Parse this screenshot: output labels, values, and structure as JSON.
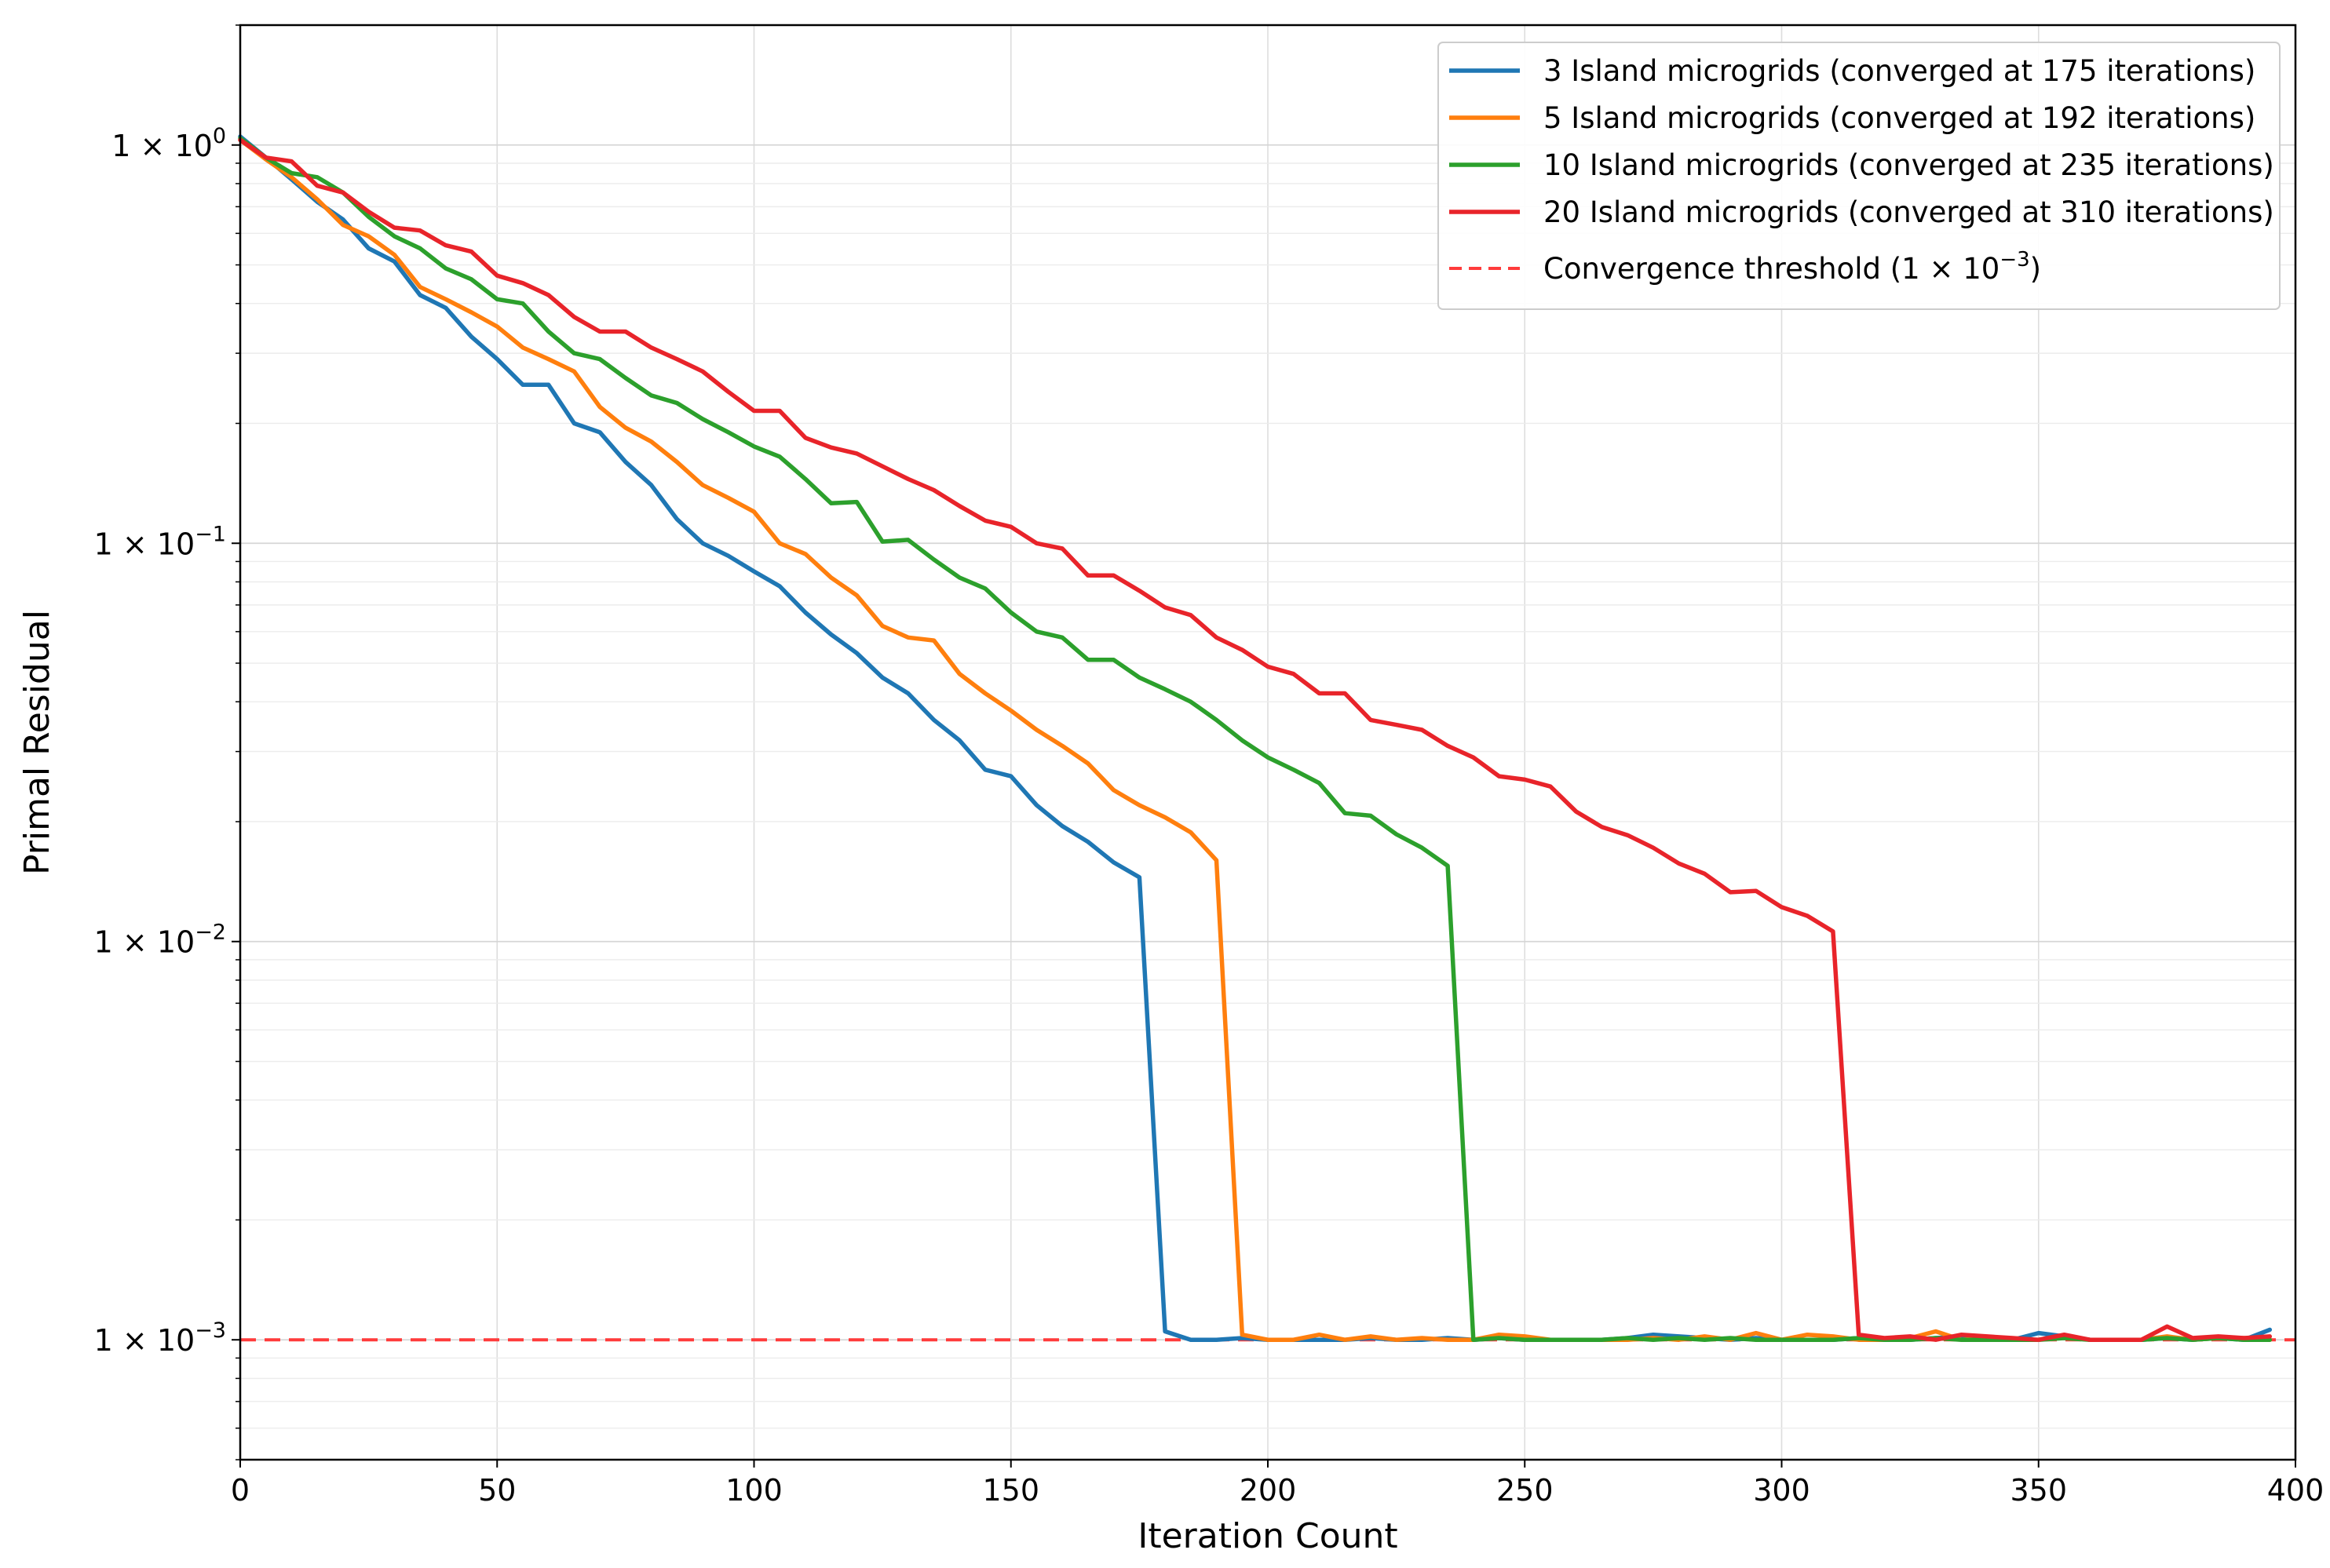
{
  "chart_data": {
    "type": "line",
    "xlabel": "Iteration Count",
    "ylabel": "Primal Residual",
    "xlim": [
      0,
      400
    ],
    "ylim": [
      0.0005,
      2.0
    ],
    "yscale": "log",
    "grid": true,
    "legend_position": "top-right",
    "x_ticks": [
      0,
      50,
      100,
      150,
      200,
      250,
      300,
      350,
      400
    ],
    "x_tick_labels": [
      "0",
      "50",
      "100",
      "150",
      "200",
      "250",
      "300",
      "350",
      "400"
    ],
    "y_ticks": [
      1,
      0.1,
      0.01,
      0.001
    ],
    "y_tick_labels": [
      {
        "base": "1 × 10",
        "exp": "0"
      },
      {
        "base": "1 × 10",
        "exp": "−1"
      },
      {
        "base": "1 × 10",
        "exp": "−2"
      },
      {
        "base": "1 × 10",
        "exp": "−3"
      }
    ],
    "x": [
      0,
      5,
      10,
      15,
      20,
      25,
      30,
      35,
      40,
      45,
      50,
      55,
      60,
      65,
      70,
      75,
      80,
      85,
      90,
      95,
      100,
      105,
      110,
      115,
      120,
      125,
      130,
      135,
      140,
      145,
      150,
      155,
      160,
      165,
      170,
      175,
      180,
      185,
      190,
      195,
      200,
      205,
      210,
      215,
      220,
      225,
      230,
      235,
      240,
      245,
      250,
      255,
      260,
      265,
      270,
      275,
      280,
      285,
      290,
      295,
      300,
      305,
      310,
      315,
      320,
      325,
      330,
      335,
      340,
      345,
      350,
      355,
      360,
      365,
      370,
      375,
      380,
      385,
      390,
      395
    ],
    "series": [
      {
        "name": "3 Island microgrids (converged at 175 iterations)",
        "color": "#1f77b4",
        "values": [
          1.05,
          0.93,
          0.82,
          0.72,
          0.65,
          0.55,
          0.51,
          0.42,
          0.39,
          0.33,
          0.29,
          0.25,
          0.25,
          0.2,
          0.19,
          0.16,
          0.14,
          0.115,
          0.1,
          0.093,
          0.085,
          0.078,
          0.067,
          0.059,
          0.053,
          0.046,
          0.042,
          0.036,
          0.032,
          0.027,
          0.026,
          0.022,
          0.0195,
          0.0178,
          0.0158,
          0.0145,
          0.00105,
          0.001,
          0.001,
          0.00101,
          0.001,
          0.001,
          0.001,
          0.001,
          0.00101,
          0.001,
          0.001,
          0.00101,
          0.001,
          0.00101,
          0.001,
          0.001,
          0.001,
          0.001,
          0.00101,
          0.00103,
          0.00102,
          0.00101,
          0.001,
          0.00101,
          0.001,
          0.001,
          0.001,
          0.00101,
          0.001,
          0.001,
          0.00101,
          0.00102,
          0.00101,
          0.001,
          0.00104,
          0.00102,
          0.001,
          0.001,
          0.001,
          0.00101,
          0.001,
          0.00101,
          0.001,
          0.00106
        ]
      },
      {
        "name": "5 Island microgrids (converged at 192 iterations)",
        "color": "#ff7f0e",
        "values": [
          1.03,
          0.92,
          0.83,
          0.73,
          0.63,
          0.59,
          0.53,
          0.44,
          0.41,
          0.38,
          0.35,
          0.31,
          0.29,
          0.27,
          0.22,
          0.195,
          0.18,
          0.16,
          0.14,
          0.13,
          0.12,
          0.1,
          0.094,
          0.082,
          0.074,
          0.062,
          0.058,
          0.057,
          0.047,
          0.042,
          0.038,
          0.034,
          0.031,
          0.028,
          0.024,
          0.022,
          0.0205,
          0.0188,
          0.016,
          0.00103,
          0.001,
          0.001,
          0.00103,
          0.001,
          0.00102,
          0.001,
          0.00101,
          0.001,
          0.001,
          0.00103,
          0.00102,
          0.001,
          0.001,
          0.001,
          0.001,
          0.00101,
          0.001,
          0.00102,
          0.001,
          0.00104,
          0.001,
          0.00103,
          0.00102,
          0.001,
          0.001,
          0.00101,
          0.00105,
          0.001,
          0.00101,
          0.001,
          0.001,
          0.00102,
          0.001,
          0.001,
          0.001,
          0.00102,
          0.001,
          0.00101,
          0.00101,
          0.001
        ]
      },
      {
        "name": "10 Island microgrids (converged at 235 iterations)",
        "color": "#2ca02c",
        "values": [
          1.04,
          0.93,
          0.85,
          0.83,
          0.76,
          0.66,
          0.59,
          0.55,
          0.49,
          0.46,
          0.41,
          0.4,
          0.34,
          0.3,
          0.29,
          0.26,
          0.235,
          0.225,
          0.205,
          0.19,
          0.175,
          0.165,
          0.145,
          0.126,
          0.127,
          0.101,
          0.102,
          0.091,
          0.082,
          0.077,
          0.067,
          0.06,
          0.058,
          0.051,
          0.051,
          0.046,
          0.043,
          0.04,
          0.036,
          0.032,
          0.029,
          0.027,
          0.025,
          0.021,
          0.0207,
          0.0186,
          0.0172,
          0.0155,
          0.001,
          0.00101,
          0.001,
          0.001,
          0.001,
          0.001,
          0.00101,
          0.001,
          0.00101,
          0.001,
          0.00101,
          0.001,
          0.001,
          0.001,
          0.001,
          0.00101,
          0.001,
          0.001,
          0.00101,
          0.001,
          0.001,
          0.001,
          0.001,
          0.00101,
          0.001,
          0.001,
          0.001,
          0.00101,
          0.001,
          0.00101,
          0.001,
          0.001
        ]
      },
      {
        "name": "20 Island microgrids (converged at 310 iterations)",
        "color": "#e8242a",
        "values": [
          1.03,
          0.93,
          0.91,
          0.79,
          0.76,
          0.68,
          0.62,
          0.61,
          0.56,
          0.54,
          0.47,
          0.45,
          0.42,
          0.37,
          0.34,
          0.34,
          0.31,
          0.29,
          0.27,
          0.24,
          0.215,
          0.215,
          0.184,
          0.174,
          0.168,
          0.156,
          0.145,
          0.136,
          0.124,
          0.114,
          0.11,
          0.1,
          0.097,
          0.083,
          0.083,
          0.076,
          0.069,
          0.066,
          0.058,
          0.054,
          0.049,
          0.047,
          0.042,
          0.042,
          0.036,
          0.035,
          0.034,
          0.031,
          0.029,
          0.026,
          0.0255,
          0.0245,
          0.0212,
          0.0194,
          0.0185,
          0.0172,
          0.0157,
          0.0148,
          0.0133,
          0.0134,
          0.0122,
          0.0116,
          0.0106,
          0.00103,
          0.00101,
          0.00102,
          0.001,
          0.00103,
          0.00102,
          0.00101,
          0.001,
          0.00103,
          0.001,
          0.001,
          0.001,
          0.00108,
          0.00101,
          0.00102,
          0.00101,
          0.00102
        ]
      }
    ],
    "threshold": {
      "label_text": "Convergence threshold (",
      "label_base": "1 × 10",
      "label_exp": "−3",
      "label_close": ")",
      "value": 0.001,
      "color": "#ff3b3b",
      "style": "dashed"
    }
  }
}
